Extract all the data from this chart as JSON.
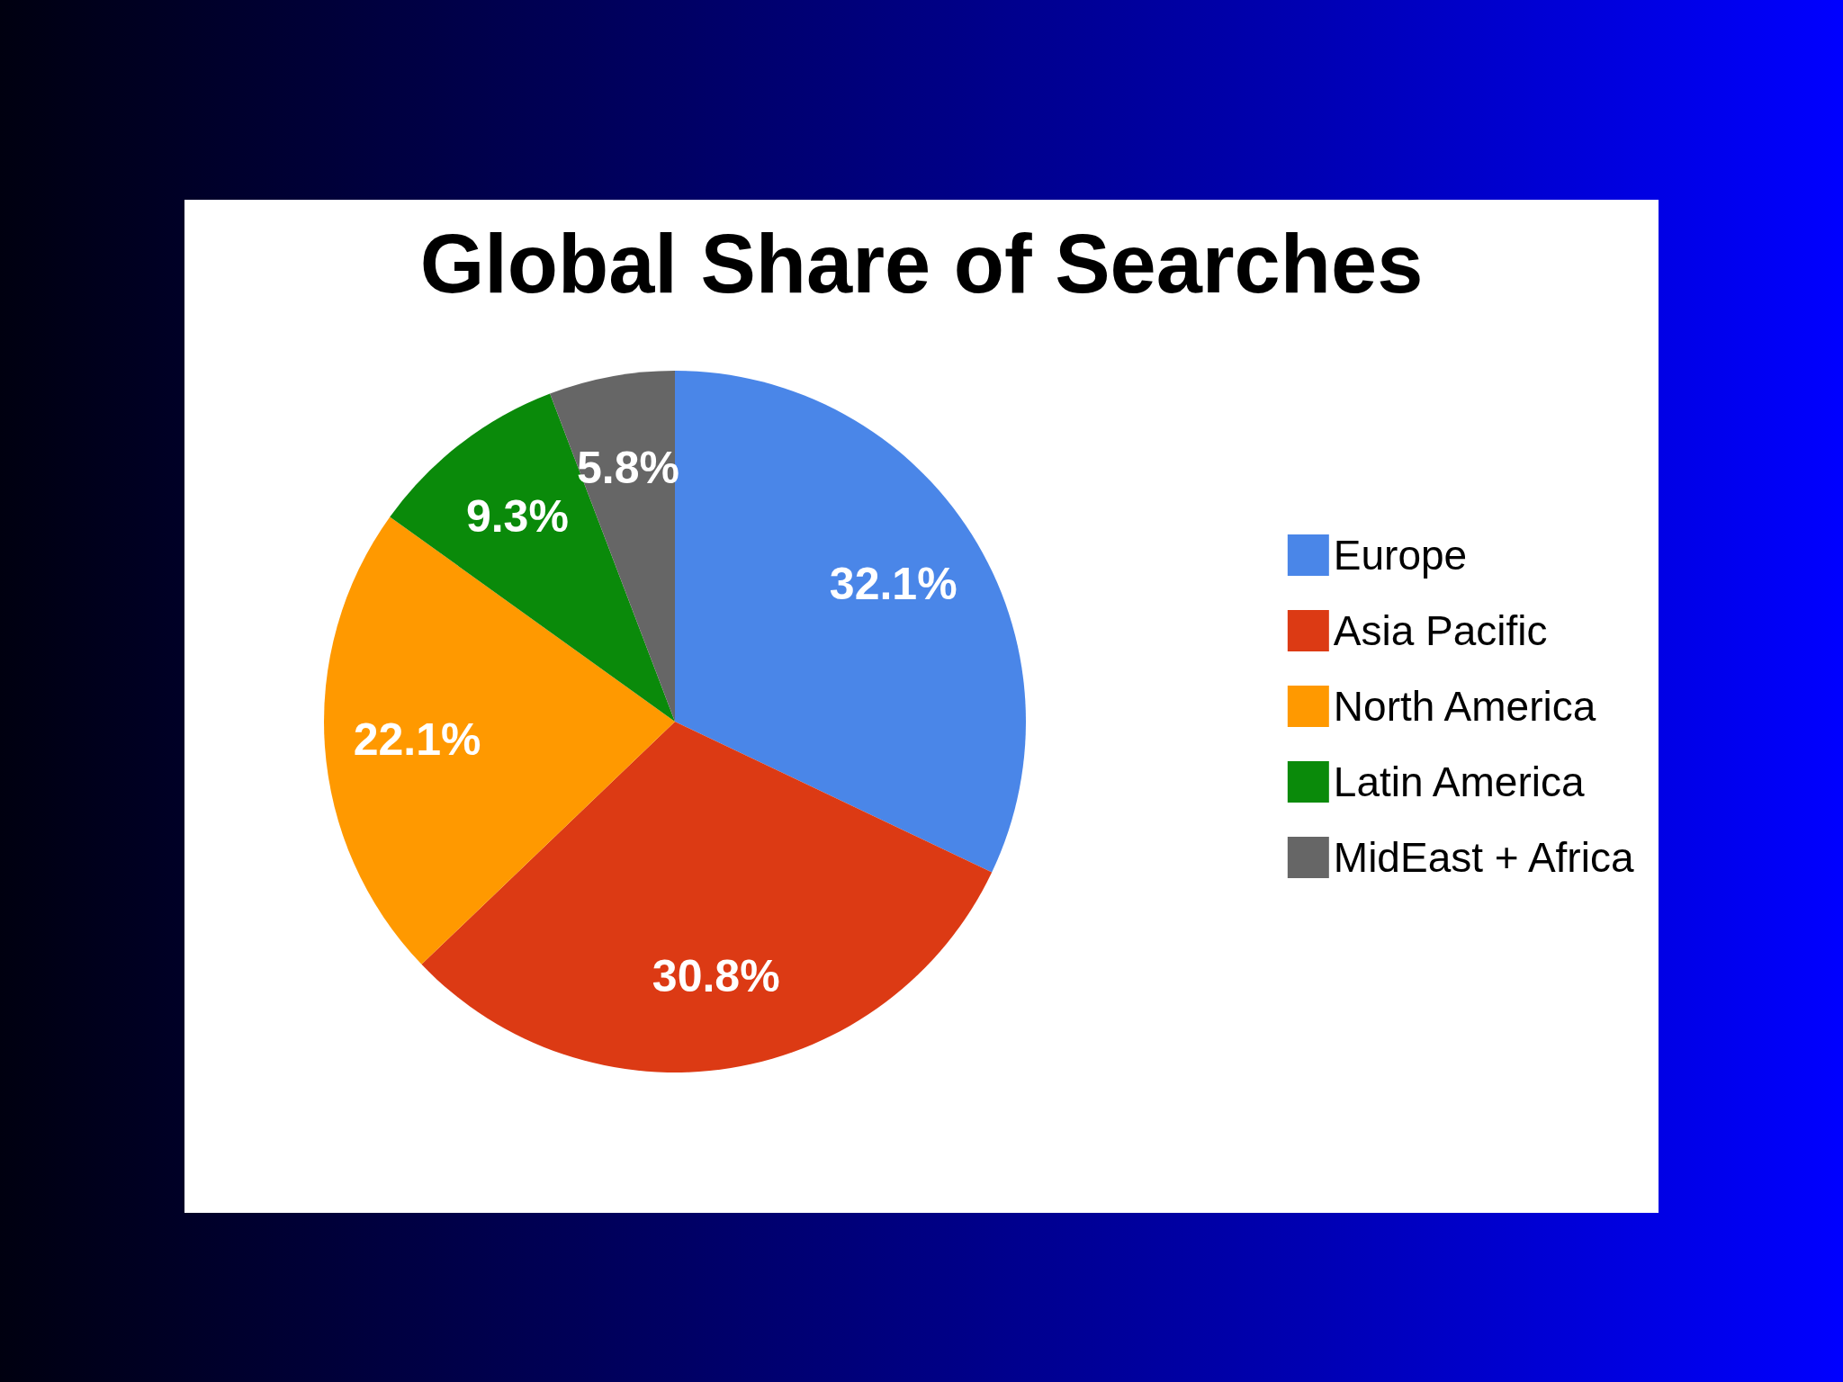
{
  "chart_data": {
    "type": "pie",
    "title": "Global Share of Searches",
    "categories": [
      "Europe",
      "Asia Pacific",
      "North America",
      "Latin America",
      "MidEast + Africa"
    ],
    "values": [
      32.1,
      30.8,
      22.1,
      9.3,
      5.8
    ],
    "colors": [
      "#4a86e8",
      "#dc3a14",
      "#ff9900",
      "#0a8a0a",
      "#666666"
    ],
    "value_labels": [
      "32.1%",
      "30.8%",
      "22.1%",
      "9.3%",
      "5.8%"
    ],
    "legend": "right"
  }
}
